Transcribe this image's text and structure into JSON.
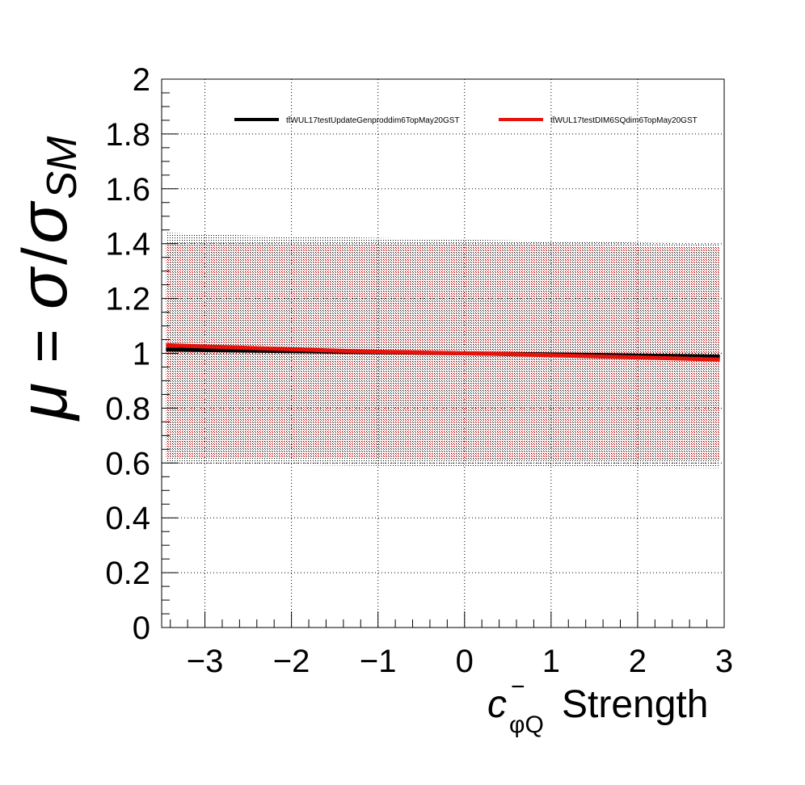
{
  "chart_data": {
    "type": "line",
    "title": "",
    "ylabel": {
      "mu": "μ",
      "equals": "=",
      "sigma": "σ",
      "slash": "/",
      "sigma2": "σ",
      "subscript": "SM"
    },
    "xlabel": {
      "c": "c",
      "superscript": "−",
      "subscript": "φQ",
      "rest": "Strength"
    },
    "xlim": [
      -3.5,
      3.0
    ],
    "ylim": [
      0,
      2.0
    ],
    "grid": true,
    "x_ticks": [
      {
        "value": -3,
        "label": "−3"
      },
      {
        "value": -2,
        "label": "−2"
      },
      {
        "value": -1,
        "label": "−1"
      },
      {
        "value": 0,
        "label": "0"
      },
      {
        "value": 1,
        "label": "1"
      },
      {
        "value": 2,
        "label": "2"
      },
      {
        "value": 3,
        "label": "3"
      }
    ],
    "y_ticks": [
      {
        "value": 0,
        "label": "0"
      },
      {
        "value": 0.2,
        "label": "0.2"
      },
      {
        "value": 0.4,
        "label": "0.4"
      },
      {
        "value": 0.6,
        "label": "0.6"
      },
      {
        "value": 0.8,
        "label": "0.8"
      },
      {
        "value": 1.0,
        "label": "1"
      },
      {
        "value": 1.2,
        "label": "1.2"
      },
      {
        "value": 1.4,
        "label": "1.4"
      },
      {
        "value": 1.6,
        "label": "1.6"
      },
      {
        "value": 1.8,
        "label": "1.8"
      },
      {
        "value": 2.0,
        "label": "2"
      }
    ],
    "legend_position": "top",
    "series": [
      {
        "name": "tt̄WUL17testUpdateGenproddim6TopMay20GST",
        "color": "#000000",
        "x": [
          -3.45,
          -3.0,
          -2.5,
          -2.0,
          -1.5,
          -1.0,
          -0.5,
          0.0,
          0.5,
          1.0,
          1.5,
          2.0,
          2.5,
          2.95
        ],
        "y": [
          1.014,
          1.012,
          1.01,
          1.008,
          1.006,
          1.004,
          1.002,
          1.0,
          0.998,
          0.996,
          0.994,
          0.992,
          0.99,
          0.988
        ],
        "band_upper": [
          1.44,
          1.435,
          1.43,
          1.427,
          1.424,
          1.421,
          1.418,
          1.415,
          1.412,
          1.41,
          1.407,
          1.404,
          1.402,
          1.4
        ],
        "band_lower": [
          0.595,
          0.594,
          0.593,
          0.592,
          0.591,
          0.59,
          0.589,
          0.588,
          0.587,
          0.586,
          0.585,
          0.584,
          0.583,
          0.582
        ]
      },
      {
        "name": "tt̄WUL17testDIM6SQdim6TopMay20GST",
        "color": "#e8120c",
        "x": [
          -3.45,
          -3.0,
          -2.5,
          -2.0,
          -1.5,
          -1.0,
          -0.5,
          0.0,
          0.5,
          1.0,
          1.5,
          2.0,
          2.5,
          2.95
        ],
        "y": [
          1.03,
          1.025,
          1.02,
          1.015,
          1.01,
          1.006,
          1.003,
          1.0,
          0.997,
          0.993,
          0.989,
          0.985,
          0.981,
          0.977
        ],
        "band_upper": [
          1.405,
          1.403,
          1.401,
          1.399,
          1.397,
          1.396,
          1.395,
          1.395,
          1.394,
          1.393,
          1.392,
          1.391,
          1.39,
          1.39
        ],
        "band_lower": [
          0.62,
          0.619,
          0.618,
          0.617,
          0.616,
          0.615,
          0.614,
          0.613,
          0.612,
          0.611,
          0.61,
          0.609,
          0.608,
          0.607
        ]
      }
    ]
  }
}
